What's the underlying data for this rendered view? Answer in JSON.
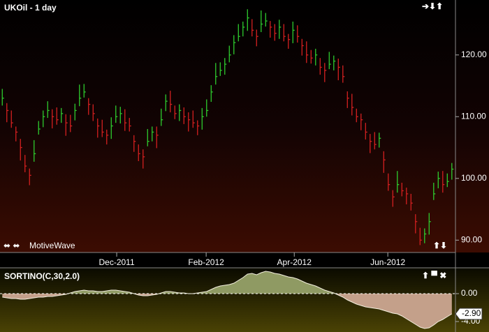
{
  "chart_data": [
    {
      "type": "ohlc",
      "title": "UKOil - 1 day",
      "watermark": "MotiveWave",
      "xlim": [
        -0.5,
        99.8
      ],
      "xticks": [
        {
          "value": 25.2,
          "label": "Dec-2011"
        },
        {
          "value": 44.9,
          "label": "Feb-2012"
        },
        {
          "value": 64.3,
          "label": "Apr-2012"
        },
        {
          "value": 84.9,
          "label": "Jun-2012"
        }
      ],
      "ylim": [
        88.0,
        128.9
      ],
      "yticks": [
        {
          "value": 90,
          "label": "90.00"
        },
        {
          "value": 100,
          "label": "100.00"
        },
        {
          "value": 110,
          "label": "110.00"
        },
        {
          "value": 120,
          "label": "120.00"
        }
      ],
      "up_color": "#2ecc2e",
      "down_color": "#d42020",
      "close": [
        113,
        111,
        109,
        107.5,
        105,
        102,
        100.5,
        104,
        108,
        110,
        111,
        110,
        109.5,
        110.5,
        109,
        108.5,
        111,
        113,
        114,
        112,
        110.5,
        108.5,
        107.5,
        107,
        108.5,
        110,
        110.5,
        109,
        108.5,
        106,
        104,
        103.5,
        106,
        107.5,
        107,
        109.5,
        112.5,
        112,
        110.5,
        111,
        110,
        109.5,
        109,
        108.5,
        110,
        111,
        114,
        116.5,
        117.5,
        118.5,
        120,
        122,
        123,
        124.5,
        126,
        124,
        123,
        125,
        125.5,
        124.5,
        123.5,
        124.5,
        123,
        122.5,
        124,
        123,
        121.5,
        120,
        119.5,
        120,
        118,
        117.5,
        118.5,
        119,
        118,
        116.5,
        113,
        111.5,
        110,
        109.5,
        107.5,
        106,
        105.5,
        106.5,
        103,
        99,
        97,
        99,
        98,
        97.5,
        96,
        93,
        90,
        91,
        93,
        97.5,
        100,
        99,
        99.5,
        101.5
      ],
      "high": [
        114.5,
        112.2,
        111,
        108.4,
        106.4,
        103.8,
        101.6,
        106.2,
        109.3,
        111,
        112.5,
        111.2,
        111.5,
        111.4,
        110.4,
        110.3,
        112.1,
        115.2,
        115.3,
        113,
        112,
        109.7,
        109.5,
        107.9,
        109.9,
        111.8,
        111.6,
        111.2,
        109.8,
        107,
        105.5,
        104.7,
        108,
        108.4,
        108.4,
        111.3,
        113.6,
        114.2,
        111.8,
        112,
        111.5,
        110.7,
        111,
        109.4,
        111.4,
        112.8,
        115.1,
        118.7,
        118.8,
        119.5,
        121.5,
        123.2,
        125,
        125.4,
        127.4,
        125.8,
        124.1,
        127.2,
        126.8,
        125.5,
        125,
        125.7,
        125,
        123.4,
        125.4,
        124.8,
        122.6,
        122.2,
        120.8,
        121,
        119.5,
        118.7,
        120.5,
        119.9,
        119.4,
        118.3,
        114.1,
        113.7,
        111.3,
        110.5,
        109,
        107.2,
        107.5,
        107.4,
        104.4,
        100.8,
        98.1,
        101.2,
        99.3,
        98.5,
        97.5,
        94.2,
        92,
        91.9,
        94.4,
        99.3,
        101.1,
        101.2,
        100.8,
        102.5
      ],
      "low": [
        111.8,
        109.1,
        108.2,
        106,
        102.9,
        101,
        98.9,
        102.7,
        107.1,
        108.3,
        109.8,
        108.1,
        108.7,
        109,
        106.9,
        107.5,
        109.4,
        111.7,
        113.1,
        110.3,
        109.3,
        106.6,
        106.7,
        105.5,
        106.4,
        109,
        108.9,
        107.7,
        107.6,
        104.3,
        102.8,
        101.6,
        105.2,
        106,
        104.9,
        108.5,
        110.9,
        110.7,
        109.6,
        109.3,
        108.8,
        107.6,
        108.2,
        107,
        107.9,
        110,
        112.4,
        115.2,
        116.6,
        116.8,
        118.8,
        120.1,
        122.2,
        123,
        123.9,
        123,
        121.4,
        123.7,
        124.6,
        122.8,
        122.3,
        122.6,
        122.2,
        121,
        121.9,
        122,
        119.9,
        118.7,
        118.6,
        118.3,
        116.8,
        115.6,
        117.7,
        117.5,
        115.9,
        115.5,
        111.4,
        110.2,
        109.1,
        107.8,
        106.3,
        104.1,
        104.7,
        105,
        100.9,
        98,
        95.4,
        97.7,
        97.1,
        95.8,
        94.8,
        91.1,
        89.2,
        89.5,
        90.9,
        96.5,
        98.4,
        97.7,
        98.6,
        99.8
      ]
    },
    {
      "type": "area",
      "title": "SORTINO(C,30,2.0)",
      "ylim": [
        -5.5,
        3.7
      ],
      "yticks": [
        {
          "value": 0,
          "label": "0.00"
        },
        {
          "value": -4,
          "label": "-4.00"
        }
      ],
      "positive_color": "#8f9a63",
      "negative_color": "#c4a08a",
      "current_label": {
        "value": -2.9,
        "label": "-2.90"
      },
      "values": [
        -0.5,
        -0.6,
        -0.7,
        -0.7,
        -0.8,
        -0.8,
        -0.7,
        -0.6,
        -0.5,
        -0.5,
        -0.4,
        -0.4,
        -0.3,
        -0.2,
        -0.1,
        0.1,
        0.3,
        0.4,
        0.5,
        0.4,
        0.4,
        0.3,
        0.3,
        0.4,
        0.5,
        0.5,
        0.4,
        0.3,
        0.2,
        0.0,
        -0.2,
        -0.3,
        -0.3,
        -0.2,
        -0.1,
        0.1,
        0.3,
        0.3,
        0.2,
        0.1,
        0.1,
        0.0,
        0.0,
        0.1,
        0.2,
        0.3,
        0.6,
        0.9,
        1.1,
        1.2,
        1.3,
        1.5,
        1.9,
        2.3,
        2.8,
        2.9,
        2.7,
        3.0,
        3.2,
        3.1,
        2.9,
        2.8,
        2.6,
        2.4,
        2.3,
        2.1,
        1.8,
        1.5,
        1.3,
        1.1,
        0.8,
        0.5,
        0.3,
        0.1,
        -0.2,
        -0.5,
        -0.9,
        -1.2,
        -1.5,
        -1.7,
        -1.9,
        -2.0,
        -2.1,
        -2.2,
        -2.4,
        -2.6,
        -2.8,
        -2.9,
        -3.2,
        -3.6,
        -4.0,
        -4.4,
        -4.8,
        -5.0,
        -4.9,
        -4.5,
        -4.0,
        -3.7,
        -3.3,
        -2.9
      ]
    }
  ]
}
